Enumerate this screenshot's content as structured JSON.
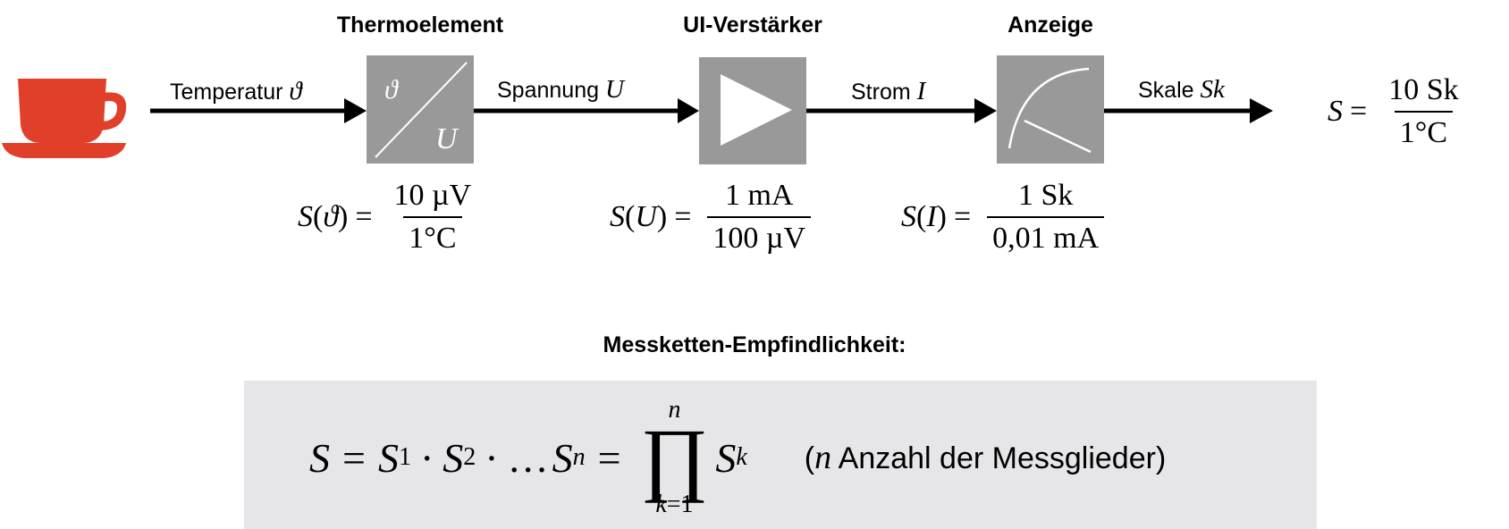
{
  "blocks": {
    "thermo": {
      "title": "Thermoelement",
      "top_symbol": "ϑ",
      "bottom_symbol": "U"
    },
    "amp": {
      "title": "UI-Verstärker"
    },
    "display": {
      "title": "Anzeige"
    }
  },
  "signals": {
    "temperature": {
      "label": "Temperatur",
      "symbol": "ϑ"
    },
    "voltage": {
      "label": "Spannung",
      "symbol": "U"
    },
    "current": {
      "label": "Strom",
      "symbol": "I"
    },
    "scale": {
      "label": "Skale",
      "symbol": "Sk"
    }
  },
  "sensitivities": {
    "thermo": {
      "lhs_func": "S",
      "lhs_var": "ϑ",
      "numerator": "10 µV",
      "denominator": "1°C"
    },
    "amp": {
      "lhs_func": "S",
      "lhs_var": "U",
      "numerator": "1 mA",
      "denominator": "100 µV"
    },
    "display": {
      "lhs_func": "S",
      "lhs_var": "I",
      "numerator": "1 Sk",
      "denominator": "0,01 mA"
    },
    "total": {
      "lhs_func": "S",
      "numerator": "10 Sk",
      "denominator": "1°C"
    }
  },
  "chain": {
    "title": "Messketten-Empfindlichkeit:",
    "formula": {
      "S": "S",
      "s1": "S",
      "s1_sub": "1",
      "s2": "S",
      "s2_sub": "2",
      "dots": "…",
      "sn": "S",
      "sn_sub": "n",
      "prod_top": "n",
      "prod_bottom_var": "k",
      "prod_bottom_val": "=1",
      "sk": "S",
      "sk_sub": "k"
    },
    "note": {
      "var": "n",
      "text": "Anzahl der Messglieder"
    }
  },
  "colors": {
    "cup": "#e0402a",
    "block_fill": "#999999",
    "formula_bg": "#e6e6e9"
  },
  "icons": {
    "cup": "teacup-icon",
    "amp": "amplifier-triangle-icon",
    "gauge": "analog-gauge-icon"
  }
}
